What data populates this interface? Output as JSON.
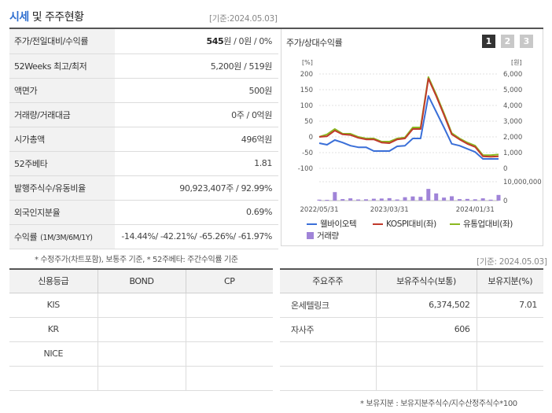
{
  "section1": {
    "title_highlight": "시세",
    "title_rest": " 및 주주현황",
    "asof": "[기준:2024.05.03]"
  },
  "price_table": {
    "rows": [
      {
        "label": "주가/전일대비/수익률",
        "value_bold": "545",
        "value_rest": "원 / 0원 / 0%"
      },
      {
        "label": "52Weeks 최고/최저",
        "value": "5,200원 / 519원"
      },
      {
        "label": "액면가",
        "value": "500원"
      },
      {
        "label": "거래량/거래대금",
        "value": "0주 / 0억원"
      },
      {
        "label": "시가총액",
        "value": "496억원"
      },
      {
        "label": "52주베타",
        "value": "1.81"
      },
      {
        "label": "발행주식수/유동비율",
        "value": "90,923,407주 / 92.99%"
      },
      {
        "label": "외국인지분율",
        "value": "0.69%"
      }
    ],
    "returns_label": "수익률",
    "returns_period": "(1M/3M/6M/1Y)",
    "returns_value": "-14.44%/ -42.21%/ -65.26%/ -61.97%"
  },
  "chart_panel": {
    "title": "주가/상대수익률",
    "tabs": [
      "1",
      "2",
      "3"
    ]
  },
  "chart_data": {
    "type": "line",
    "left_axis_unit": "[%]",
    "right_axis_unit": "[원]",
    "left_ticks": [
      200,
      150,
      100,
      50,
      0,
      -50,
      -100
    ],
    "right_ticks": [
      "6,000",
      "5,000",
      "4,000",
      "3,000",
      "2,000",
      "1,000",
      "0"
    ],
    "volume_tick": "10,000,000",
    "volume_zero": "0",
    "x_labels": [
      "2022/05/31",
      "2023/03/31",
      "2024/01/31"
    ],
    "ylim": [
      -100,
      200
    ],
    "x_count": 24,
    "series": [
      {
        "name": "웰바이오텍",
        "color": "#3a6fd8",
        "values": [
          -20,
          -25,
          -10,
          -18,
          -28,
          -33,
          -33,
          -45,
          -45,
          -45,
          -30,
          -28,
          -5,
          -5,
          130,
          80,
          30,
          -22,
          -28,
          -38,
          -48,
          -70,
          -70,
          -70
        ]
      },
      {
        "name": "KOSPI대비(좌)",
        "color": "#c0392b",
        "values": [
          0,
          2,
          20,
          8,
          6,
          -3,
          -8,
          -8,
          -18,
          -20,
          -8,
          -5,
          25,
          25,
          185,
          130,
          70,
          8,
          -8,
          -22,
          -32,
          -62,
          -63,
          -62
        ]
      },
      {
        "name": "유통업대비(좌)",
        "color": "#8ab820",
        "values": [
          0,
          8,
          25,
          10,
          10,
          0,
          -5,
          -5,
          -15,
          -15,
          -5,
          -2,
          30,
          30,
          190,
          135,
          75,
          12,
          -5,
          -18,
          -28,
          -58,
          -58,
          -56
        ]
      }
    ],
    "volume": {
      "name": "거래량",
      "color": "#a084d8",
      "values": [
        0.5,
        0.4,
        4.5,
        0.8,
        1.2,
        0.6,
        0.7,
        1.0,
        1.1,
        1.3,
        0.6,
        1.8,
        2.2,
        2.0,
        6.2,
        3.8,
        1.6,
        2.3,
        0.8,
        0.9,
        0.7,
        1.2,
        0.5,
        3.0
      ]
    }
  },
  "chart_note": "* 수정주가(차트포함), 보통주 기준, * 52주베타: 주간수익률 기준",
  "section2": {
    "asof": "[기준: 2024.05.03]"
  },
  "credit_table": {
    "headers": [
      "신용등급",
      "BOND",
      "CP"
    ],
    "rows": [
      [
        "KIS",
        "",
        ""
      ],
      [
        "KR",
        "",
        ""
      ],
      [
        "NICE",
        "",
        ""
      ],
      [
        "",
        "",
        ""
      ]
    ]
  },
  "holders_table": {
    "headers": [
      "주요주주",
      "보유주식수(보통)",
      "보유지분(%)"
    ],
    "rows": [
      [
        "온세텔링크",
        "6,374,502",
        "7.01"
      ],
      [
        "자사주",
        "606",
        ""
      ],
      [
        "",
        "",
        ""
      ],
      [
        "",
        "",
        ""
      ]
    ]
  },
  "holders_note": "* 보유지분 : 보유지분주식수/지수산정주식수*100"
}
